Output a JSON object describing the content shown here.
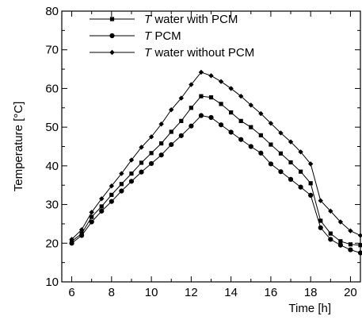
{
  "chart_data": {
    "type": "line",
    "title": "",
    "xlabel": "Time [h]",
    "ylabel": "Temperature [°C]",
    "xlim": [
      5.5,
      20.5
    ],
    "ylim": [
      10,
      80
    ],
    "xticks": [
      6,
      8,
      10,
      12,
      14,
      16,
      18,
      20
    ],
    "yticks": [
      10,
      20,
      30,
      40,
      50,
      60,
      70,
      80
    ],
    "grid": false,
    "legend_position": "top-left",
    "series": [
      {
        "name": "T water with PCM",
        "name_italic": "T",
        "name_rest": " water with PCM",
        "marker": "square",
        "color": "#000000",
        "x": [
          6,
          6.5,
          7,
          7.5,
          8,
          8.5,
          9,
          9.5,
          10,
          10.5,
          11,
          11.5,
          12,
          12.5,
          13,
          13.5,
          14,
          14.5,
          15,
          15.5,
          16,
          16.5,
          17,
          17.5,
          18,
          18.5,
          19,
          19.5,
          20,
          20.5
        ],
        "y": [
          20.5,
          22.5,
          26.8,
          29.5,
          32.5,
          35.3,
          38,
          40.8,
          43.3,
          45.8,
          48.8,
          51.6,
          55,
          58,
          57.7,
          56,
          53.8,
          51.6,
          50,
          47.9,
          45.5,
          43.2,
          40.9,
          38.5,
          35.5,
          25.8,
          22.5,
          20.5,
          19.7,
          19.5
        ]
      },
      {
        "name": "T PCM",
        "name_italic": "T",
        "name_rest": " PCM",
        "marker": "circle",
        "color": "#000000",
        "x": [
          6,
          6.5,
          7,
          7.5,
          8,
          8.5,
          9,
          9.5,
          10,
          10.5,
          11,
          11.5,
          12,
          12.5,
          13,
          13.5,
          14,
          14.5,
          15,
          15.5,
          16,
          16.5,
          17,
          17.5,
          18,
          18.5,
          19,
          19.5,
          20,
          20.5
        ],
        "y": [
          20,
          22,
          25.5,
          28.3,
          30.8,
          33.5,
          36,
          38.4,
          40.6,
          42.8,
          45.5,
          47.8,
          50.3,
          53,
          52.5,
          50.6,
          48.7,
          46.8,
          45,
          43.3,
          40.5,
          38.5,
          36.5,
          34.5,
          32.4,
          24,
          21,
          19.5,
          18.3,
          17.5
        ]
      },
      {
        "name": "T water without PCM",
        "name_italic": "T",
        "name_rest": " water without PCM",
        "marker": "diamond",
        "color": "#000000",
        "x": [
          6,
          6.5,
          7,
          7.5,
          8,
          8.5,
          9,
          9.5,
          10,
          10.5,
          11,
          11.5,
          12,
          12.5,
          13,
          13.5,
          14,
          14.5,
          15,
          15.5,
          16,
          16.5,
          17,
          17.5,
          18,
          18.5,
          19,
          19.5,
          20,
          20.5
        ],
        "y": [
          21,
          23.5,
          28,
          31.5,
          34.8,
          38,
          41.5,
          44.8,
          47.5,
          50.8,
          54.5,
          57.5,
          61,
          64.2,
          63.3,
          61.8,
          60,
          58,
          55.7,
          53.5,
          51,
          48.5,
          46.2,
          43.6,
          40.5,
          31,
          28.3,
          25.5,
          23.2,
          22
        ]
      }
    ]
  }
}
